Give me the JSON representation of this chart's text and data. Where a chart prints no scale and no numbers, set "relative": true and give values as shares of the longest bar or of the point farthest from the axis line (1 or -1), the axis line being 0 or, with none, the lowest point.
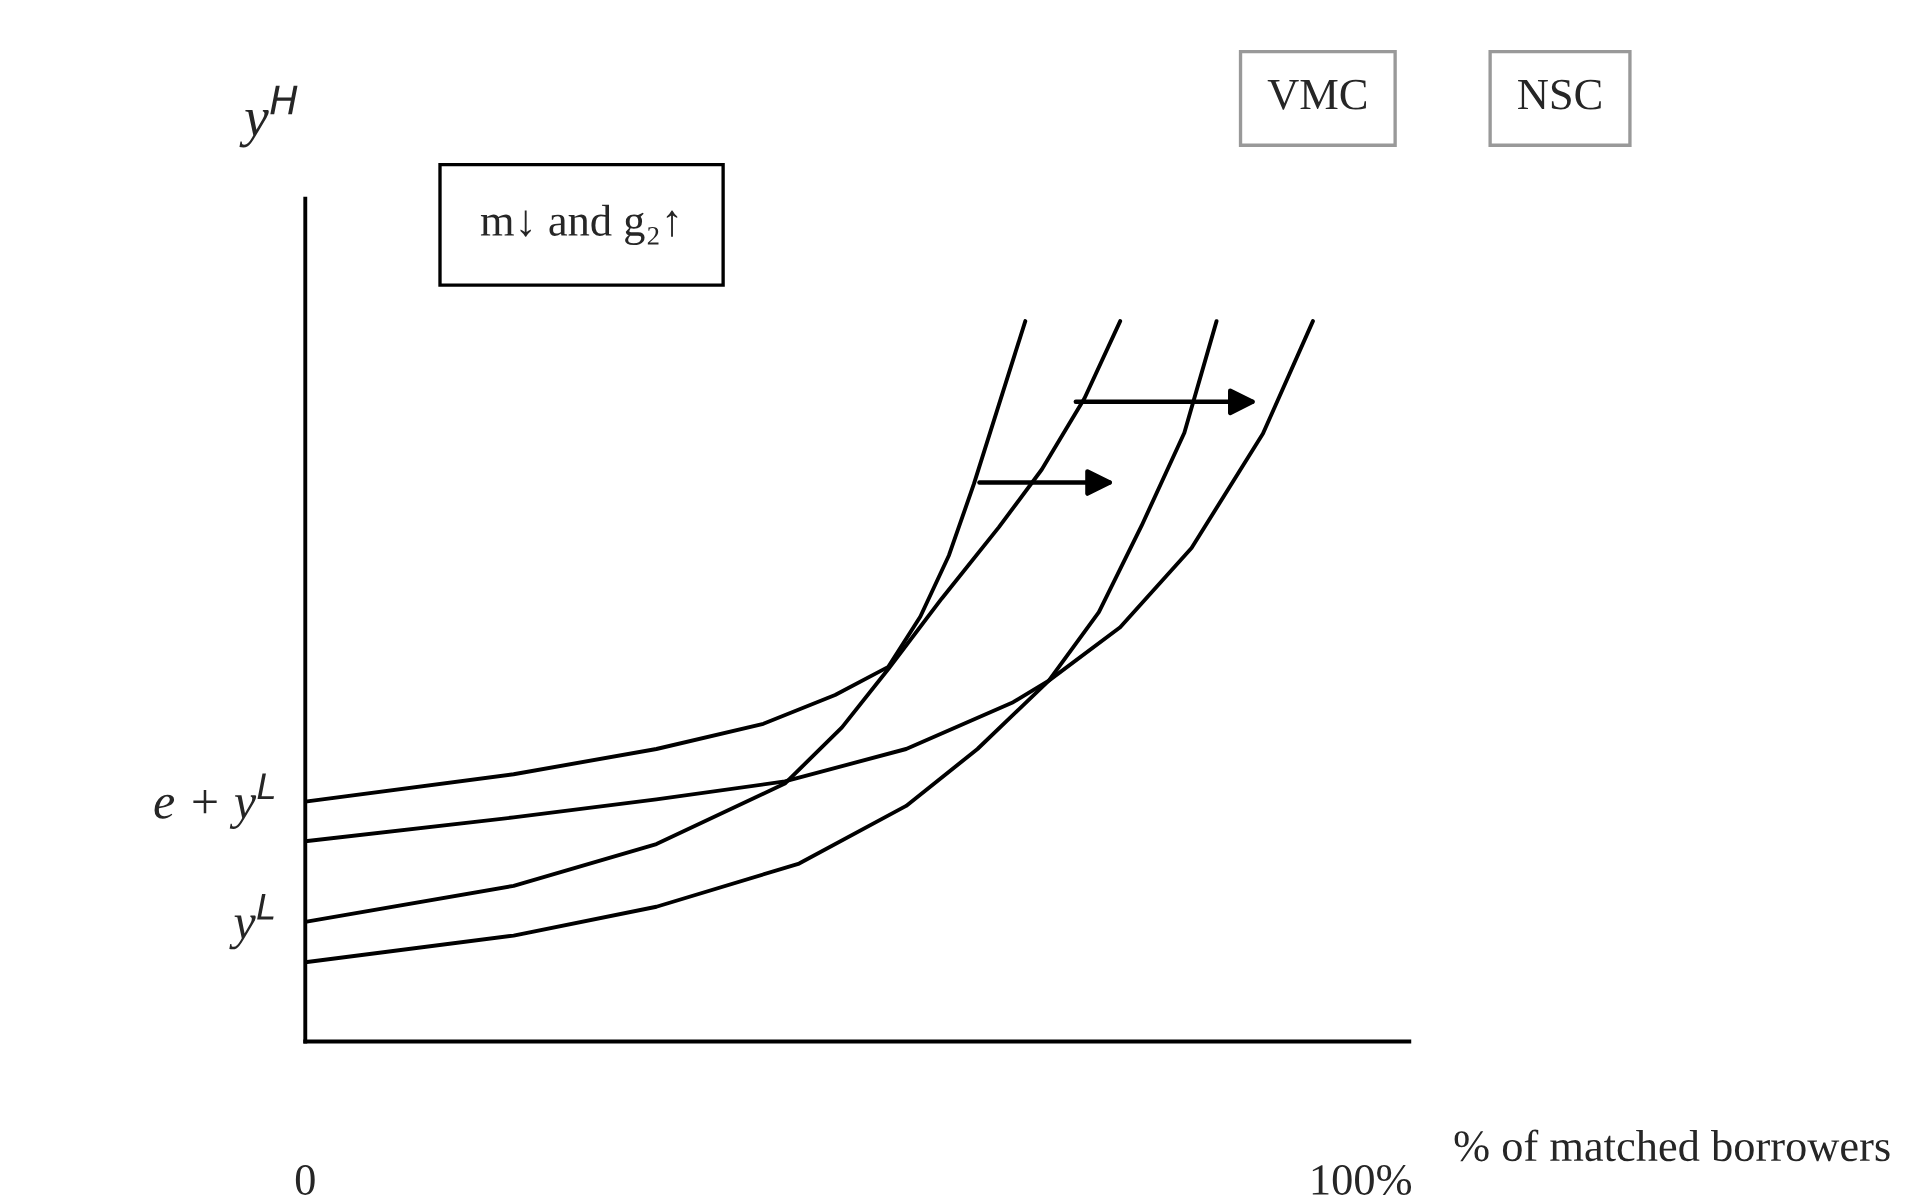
{
  "chart_data": {
    "type": "line",
    "relative": true,
    "ylabel": "y$^{H}$",
    "xlabel": "% of matched borrowers",
    "xlim": [
      0,
      104.6
    ],
    "xticks": [
      {
        "value": 0,
        "label": "0"
      },
      {
        "value": 100,
        "label": "100%"
      }
    ],
    "tick_labels": "x",
    "annotations": [
      "m↓ and g₂↑",
      "VMC",
      "NSC",
      {
        "text": "e + y$^{L}$",
        "x": 0,
        "y": 0.333
      },
      {
        "text": "y$^{L}$",
        "x": 0,
        "y": 0.166
      }
    ],
    "series": [
      {
        "color": "#000000",
        "x": [
          0,
          19.74,
          33.27,
          43.4,
          50.2,
          55.24,
          58.28,
          60.99,
          63.35,
          65.72,
          68.22
        ],
        "values": [
          0.333,
          0.371,
          0.406,
          0.441,
          0.481,
          0.52,
          0.59,
          0.675,
          0.774,
          0.884,
          1.0
        ]
      },
      {
        "color": "#000000",
        "x": [
          0,
          19.74,
          33.27,
          45.44,
          56.93,
          67.07,
          70.45,
          77.21,
          83.97,
          90.74,
          95.47
        ],
        "values": [
          0.278,
          0.311,
          0.336,
          0.361,
          0.406,
          0.471,
          0.501,
          0.575,
          0.685,
          0.844,
          1.0
        ]
      },
      {
        "color": "#000000",
        "x": [
          0,
          19.74,
          33.27,
          45.44,
          50.85,
          55.24,
          60.31,
          65.72,
          69.78,
          73.83,
          77.21
        ],
        "values": [
          0.166,
          0.216,
          0.274,
          0.358,
          0.436,
          0.517,
          0.615,
          0.714,
          0.794,
          0.893,
          1.0
        ]
      },
      {
        "color": "#000000",
        "x": [
          0,
          19.74,
          33.27,
          46.79,
          56.93,
          63.69,
          70.45,
          75.19,
          79.24,
          83.29,
          86.34
        ],
        "values": [
          0.11,
          0.147,
          0.187,
          0.247,
          0.327,
          0.406,
          0.501,
          0.596,
          0.716,
          0.845,
          1.0
        ]
      }
    ]
  }
}
